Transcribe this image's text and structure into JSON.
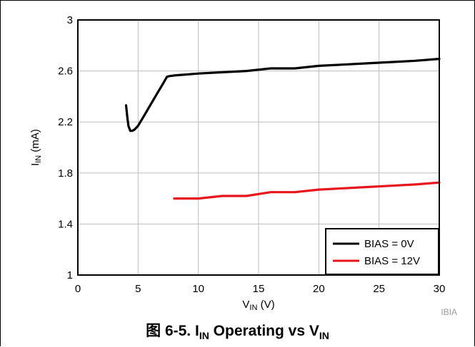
{
  "chart_data": {
    "type": "line",
    "xlabel": {
      "main": "V",
      "sub": "IN",
      "unit": " (V)"
    },
    "ylabel": {
      "main": "I",
      "sub": "IN",
      "unit": " (mA)"
    },
    "xlim": [
      0,
      30
    ],
    "ylim": [
      1,
      3
    ],
    "xticks": [
      0,
      5,
      10,
      15,
      20,
      25,
      30
    ],
    "yticks": [
      1,
      1.4,
      1.8,
      2.2,
      2.6,
      3
    ],
    "grid": true,
    "legend_position": "bottom-right",
    "series": [
      {
        "name": "BIAS = 0V",
        "color": "#000000",
        "x": [
          4.0,
          4.1,
          4.2,
          4.35,
          4.5,
          4.7,
          5.0,
          5.5,
          6.0,
          6.5,
          7.0,
          7.4,
          7.6,
          8.0,
          10,
          12,
          14,
          16,
          18,
          20,
          22,
          24,
          26,
          28,
          30
        ],
        "y": [
          2.33,
          2.24,
          2.17,
          2.13,
          2.13,
          2.14,
          2.17,
          2.25,
          2.33,
          2.41,
          2.49,
          2.555,
          2.56,
          2.565,
          2.58,
          2.59,
          2.6,
          2.62,
          2.62,
          2.64,
          2.65,
          2.66,
          2.67,
          2.68,
          2.695
        ]
      },
      {
        "name": "BIAS = 12V",
        "color": "#e8141b",
        "x": [
          8,
          10,
          12,
          14,
          16,
          18,
          20,
          22,
          24,
          26,
          28,
          30
        ],
        "y": [
          1.6,
          1.6,
          1.62,
          1.62,
          1.65,
          1.65,
          1.67,
          1.68,
          1.69,
          1.7,
          1.71,
          1.725
        ]
      }
    ]
  },
  "watermark": "IBIA",
  "caption": {
    "prefix": "图 6-5. I",
    "sub1": "IN",
    "middle": " Operating vs V",
    "sub2": "IN"
  }
}
